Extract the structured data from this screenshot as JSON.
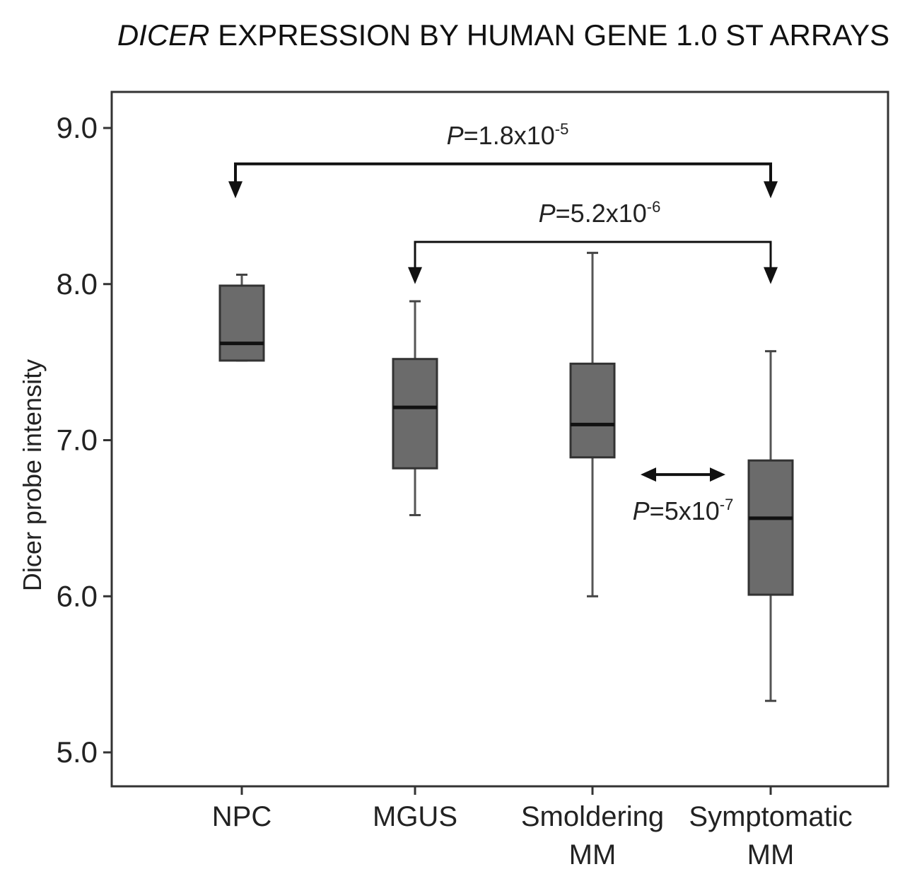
{
  "chart_data": {
    "type": "box",
    "title_italic": "DICER",
    "title_rest": " EXPRESSION BY HUMAN GENE 1.0 ST ARRAYS",
    "xlabel": "",
    "ylabel": "Dicer probe intensity",
    "ylim": [
      4.8,
      9.2
    ],
    "yticks": [
      5.0,
      6.0,
      7.0,
      8.0,
      9.0
    ],
    "ytick_labels": [
      "5.0",
      "6.0",
      "7.0",
      "8.0",
      "9.0"
    ],
    "categories": [
      {
        "line1": "NPC",
        "line2": ""
      },
      {
        "line1": "MGUS",
        "line2": ""
      },
      {
        "line1": "Smoldering",
        "line2": "MM"
      },
      {
        "line1": "Symptomatic",
        "line2": "MM"
      }
    ],
    "boxes": [
      {
        "whisker_low": 7.51,
        "q1": 7.51,
        "median": 7.62,
        "q3": 7.99,
        "whisker_high": 8.06
      },
      {
        "whisker_low": 6.52,
        "q1": 6.82,
        "median": 7.21,
        "q3": 7.52,
        "whisker_high": 7.89
      },
      {
        "whisker_low": 6.0,
        "q1": 6.89,
        "median": 7.1,
        "q3": 7.49,
        "whisker_high": 8.2
      },
      {
        "whisker_low": 5.33,
        "q1": 6.01,
        "median": 6.5,
        "q3": 6.87,
        "whisker_high": 7.57
      }
    ],
    "box_color": "#6b6b6b",
    "annotations": [
      {
        "from": 0,
        "to": 3,
        "y": 8.77,
        "arrow_tip_y": 8.55,
        "p_label": "P",
        "p_text": "=1.8x10",
        "p_exp": "-5"
      },
      {
        "from": 1,
        "to": 3,
        "y": 8.27,
        "arrow_tip_y": 8.0,
        "p_label": "P",
        "p_text": "=5.2x10",
        "p_exp": "-6"
      },
      {
        "between": [
          2,
          3
        ],
        "y": 6.78,
        "p_label": "P",
        "p_text": "=5x10",
        "p_exp": "-7"
      }
    ]
  }
}
